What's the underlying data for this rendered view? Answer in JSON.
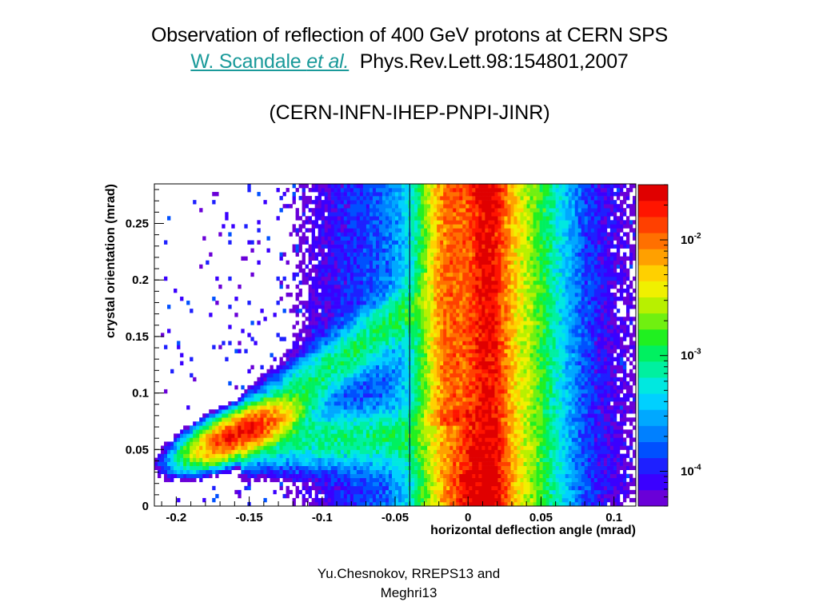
{
  "slide": {
    "title": "Observation of reflection of 400 GeV protons at CERN SPS",
    "author_link": "W. Scandale ",
    "author_etal": "et al.",
    "reference": "Phys.Rev.Lett.98:154801,2007",
    "collaboration": "(CERN-INFN-IHEP-PNPI-JINR)",
    "footer": "Yu.Chesnokov,   RREPS13 and Meghri13"
  },
  "chart_data": {
    "type": "heatmap",
    "xlabel": "horizontal deflection angle (mrad)",
    "ylabel": "crystal orientation (mrad)",
    "xlim": [
      -0.215,
      0.115
    ],
    "ylim": [
      0,
      0.285
    ],
    "x_ticks": [
      -0.2,
      -0.15,
      -0.1,
      -0.05,
      0,
      0.05,
      0.1
    ],
    "x_tick_labels": [
      "-0.2",
      "-0.15",
      "-0.1",
      "-0.05",
      "0",
      "0.05",
      "0.1"
    ],
    "y_ticks": [
      0,
      0.05,
      0.1,
      0.15,
      0.2,
      0.25
    ],
    "y_tick_labels": [
      "0",
      "0.05",
      "0.1",
      "0.15",
      "0.2",
      "0.25"
    ],
    "colorbar": {
      "scale": "log",
      "range": [
        5e-05,
        0.03
      ],
      "ticks": [
        0.0001,
        0.001,
        0.01
      ],
      "tick_base": "10",
      "tick_exponents": [
        "-4",
        "-3",
        "-2"
      ],
      "palette": [
        "#6a00d8",
        "#3a00ff",
        "#1e20ff",
        "#0050ff",
        "#0080ff",
        "#00a8ff",
        "#00d0ff",
        "#00e8e0",
        "#00f0a0",
        "#00f060",
        "#20f020",
        "#70f010",
        "#b8f000",
        "#f0f000",
        "#ffd000",
        "#ffa000",
        "#ff7000",
        "#ff4000",
        "#ff1500",
        "#e00000"
      ]
    },
    "features": {
      "straight_beam_x": 0.013,
      "straight_beam_width": 0.011,
      "volume_reflection_x": -0.012,
      "volume_reflection_y_range": [
        0.09,
        0.285
      ],
      "channeling_peak": [
        -0.155,
        0.065
      ],
      "vertical_line_x": -0.04
    }
  }
}
